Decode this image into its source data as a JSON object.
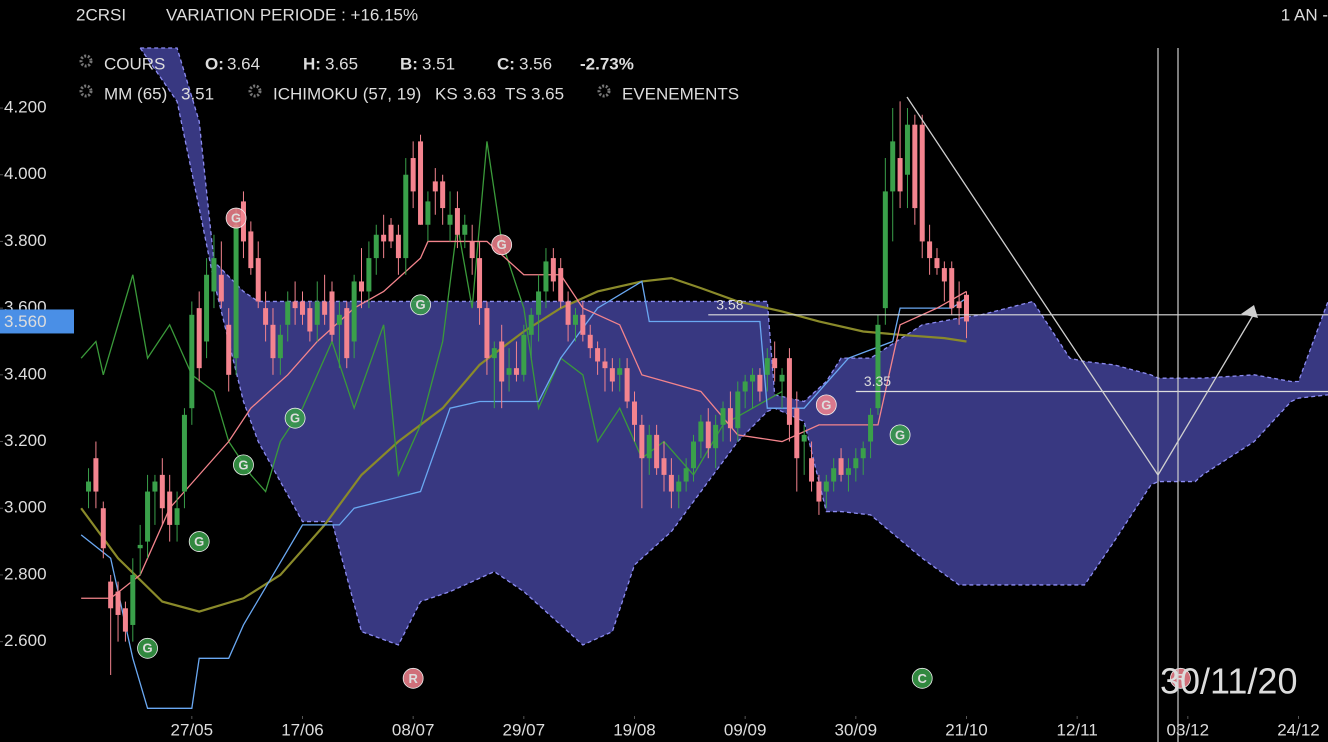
{
  "header": {
    "symbol": "2CRSI",
    "variation": "VARIATION PERIODE : +16.15%",
    "period": "1 AN -"
  },
  "chart_data": {
    "type": "candlestick",
    "quote": {
      "label": "COURS",
      "fields": [
        {
          "label": "O:",
          "value": 3.64
        },
        {
          "label": "H:",
          "value": 3.65
        },
        {
          "label": "B:",
          "value": 3.51
        },
        {
          "label": "C:",
          "value": 3.56
        }
      ],
      "change": "-2.73%"
    },
    "indicator": "ICHIMOKU (57, 19)",
    "events_label": "EVENEMENTS",
    "up_color": "#3aa04a",
    "down_color": "#f4848f",
    "x": [
      1,
      2,
      3,
      4,
      5,
      6,
      7,
      8,
      9,
      10,
      11,
      12,
      13,
      14,
      15,
      16,
      17,
      18,
      19,
      20,
      21,
      22,
      23,
      24,
      25,
      26,
      27,
      28,
      29,
      30,
      31,
      32,
      33,
      34,
      35,
      36,
      37,
      38,
      39,
      40,
      41,
      42,
      43,
      44,
      45,
      46,
      47,
      48,
      49,
      50,
      51,
      52,
      53,
      54,
      55,
      56,
      57,
      58,
      59,
      60,
      61,
      62,
      63,
      64,
      65,
      66,
      67,
      68,
      69,
      70,
      71,
      72,
      73,
      74,
      75,
      76,
      77,
      78,
      79,
      80,
      81,
      82,
      83,
      84,
      85,
      86,
      87,
      88,
      89,
      90,
      91,
      92,
      93,
      94,
      95,
      96,
      97,
      98,
      99,
      100,
      101,
      102,
      103,
      104,
      105,
      106,
      107,
      108,
      109,
      110,
      111,
      112,
      113,
      114,
      115,
      116,
      117,
      118,
      119,
      120
    ],
    "open": [
      3.05,
      3.15,
      3.0,
      2.78,
      2.75,
      2.7,
      2.65,
      2.88,
      2.9,
      3.05,
      3.1,
      3.05,
      2.95,
      3.05,
      3.3,
      3.6,
      3.5,
      3.65,
      3.7,
      3.55,
      3.45,
      3.92,
      3.83,
      3.75,
      3.6,
      3.55,
      3.45,
      3.55,
      3.62,
      3.62,
      3.6,
      3.55,
      3.62,
      3.65,
      3.55,
      3.6,
      3.5,
      3.68,
      3.65,
      3.75,
      3.82,
      3.85,
      3.82,
      3.75,
      4.05,
      4.1,
      3.85,
      3.98,
      3.98,
      3.85,
      3.9,
      3.82,
      3.8,
      3.75,
      3.6,
      3.45,
      3.5,
      3.4,
      3.42,
      3.4,
      3.52,
      3.58,
      3.65,
      3.75,
      3.72,
      3.62,
      3.55,
      3.58,
      3.52,
      3.48,
      3.44,
      3.42,
      3.4,
      3.42,
      3.32,
      3.25,
      3.15,
      3.22,
      3.15,
      3.1,
      3.05,
      3.08,
      3.12,
      3.2,
      3.26,
      3.18,
      3.25,
      3.3,
      3.24,
      3.35,
      3.38,
      3.4,
      3.4,
      3.45,
      3.38,
      3.45,
      3.3,
      3.2,
      3.15,
      3.08,
      3.05,
      3.08,
      3.15,
      3.1,
      3.12,
      3.15,
      3.2,
      3.3,
      3.6,
      3.95,
      4.05,
      4.0,
      4.15,
      4.15,
      3.8,
      3.75,
      3.72,
      3.72,
      3.62,
      3.64
    ],
    "high": [
      3.12,
      3.2,
      3.02,
      2.8,
      2.78,
      2.72,
      2.85,
      2.95,
      3.1,
      3.1,
      3.15,
      3.1,
      3.05,
      3.3,
      3.62,
      3.65,
      3.75,
      3.82,
      3.8,
      3.6,
      3.9,
      3.95,
      3.86,
      3.8,
      3.65,
      3.6,
      3.55,
      3.65,
      3.68,
      3.65,
      3.62,
      3.68,
      3.7,
      3.68,
      3.62,
      3.62,
      3.7,
      3.78,
      3.8,
      3.85,
      3.88,
      3.87,
      3.85,
      4.05,
      4.1,
      4.12,
      3.95,
      4.02,
      4.0,
      3.95,
      3.95,
      3.88,
      3.85,
      3.8,
      3.62,
      3.5,
      3.55,
      3.48,
      3.5,
      3.55,
      3.6,
      3.7,
      3.78,
      3.78,
      3.75,
      3.65,
      3.6,
      3.62,
      3.55,
      3.5,
      3.48,
      3.45,
      3.45,
      3.45,
      3.35,
      3.28,
      3.25,
      3.25,
      3.2,
      3.15,
      3.1,
      3.15,
      3.22,
      3.28,
      3.3,
      3.28,
      3.32,
      3.35,
      3.38,
      3.4,
      3.42,
      3.42,
      3.48,
      3.5,
      3.42,
      3.48,
      3.35,
      3.25,
      3.2,
      3.1,
      3.1,
      3.15,
      3.18,
      3.15,
      3.18,
      3.2,
      3.3,
      3.58,
      4.05,
      4.2,
      4.22,
      4.2,
      4.18,
      4.18,
      3.85,
      3.78,
      3.74,
      3.74,
      3.68,
      3.65
    ],
    "low": [
      3.0,
      3.0,
      2.85,
      2.5,
      2.6,
      2.6,
      2.6,
      2.8,
      2.85,
      2.95,
      2.95,
      2.9,
      2.9,
      3.0,
      3.25,
      3.38,
      3.45,
      3.6,
      3.6,
      3.35,
      3.4,
      3.75,
      3.7,
      3.6,
      3.5,
      3.4,
      3.4,
      3.5,
      3.55,
      3.55,
      3.5,
      3.5,
      3.55,
      3.5,
      3.42,
      3.42,
      3.45,
      3.6,
      3.6,
      3.7,
      3.75,
      3.78,
      3.7,
      3.7,
      3.9,
      3.85,
      3.8,
      3.88,
      3.85,
      3.8,
      3.78,
      3.78,
      3.7,
      3.55,
      3.4,
      3.3,
      3.3,
      3.35,
      3.38,
      3.38,
      3.45,
      3.5,
      3.6,
      3.65,
      3.6,
      3.5,
      3.5,
      3.5,
      3.45,
      3.4,
      3.35,
      3.35,
      3.35,
      3.3,
      3.2,
      3.0,
      3.1,
      3.1,
      3.05,
      3.0,
      3.0,
      3.05,
      3.08,
      3.15,
      3.15,
      3.12,
      3.2,
      3.2,
      3.2,
      3.3,
      3.3,
      3.32,
      3.35,
      3.38,
      3.3,
      3.2,
      3.05,
      3.1,
      3.05,
      2.98,
      3.0,
      3.05,
      3.08,
      3.05,
      3.08,
      3.1,
      3.15,
      3.28,
      3.55,
      3.8,
      3.9,
      3.9,
      3.85,
      3.75,
      3.7,
      3.7,
      3.62,
      3.58,
      3.55,
      3.51
    ],
    "close": [
      3.08,
      3.05,
      2.88,
      2.7,
      2.68,
      2.63,
      2.8,
      2.89,
      3.05,
      3.08,
      3.0,
      2.95,
      3.0,
      3.28,
      3.58,
      3.42,
      3.7,
      3.75,
      3.62,
      3.4,
      3.85,
      3.8,
      3.72,
      3.62,
      3.55,
      3.45,
      3.52,
      3.62,
      3.6,
      3.58,
      3.53,
      3.62,
      3.58,
      3.52,
      3.58,
      3.45,
      3.68,
      3.65,
      3.75,
      3.82,
      3.8,
      3.8,
      3.75,
      4.0,
      3.95,
      3.85,
      3.92,
      3.95,
      3.9,
      3.88,
      3.82,
      3.85,
      3.75,
      3.6,
      3.45,
      3.48,
      3.38,
      3.42,
      3.4,
      3.52,
      3.58,
      3.65,
      3.74,
      3.68,
      3.62,
      3.55,
      3.58,
      3.52,
      3.48,
      3.44,
      3.42,
      3.38,
      3.42,
      3.32,
      3.25,
      3.15,
      3.22,
      3.12,
      3.1,
      3.05,
      3.08,
      3.12,
      3.2,
      3.26,
      3.18,
      3.25,
      3.3,
      3.24,
      3.35,
      3.38,
      3.4,
      3.35,
      3.45,
      3.42,
      3.4,
      3.25,
      3.15,
      3.22,
      3.08,
      3.02,
      3.08,
      3.12,
      3.1,
      3.12,
      3.15,
      3.18,
      3.28,
      3.55,
      3.95,
      4.1,
      3.95,
      4.15,
      3.9,
      3.8,
      3.75,
      3.72,
      3.68,
      3.6,
      3.6,
      3.56
    ],
    "series": [
      {
        "name": "MM (65)",
        "current": 3.51,
        "color": "#8a8a2a",
        "x": [
          0,
          5,
          11,
          16,
          22,
          27,
          33,
          38,
          43,
          49,
          54,
          60,
          65,
          70,
          76,
          80,
          84,
          89,
          95,
          100,
          106,
          111,
          117,
          120
        ],
        "values": [
          3.0,
          2.85,
          2.72,
          2.69,
          2.73,
          2.8,
          2.95,
          3.1,
          3.2,
          3.3,
          3.43,
          3.53,
          3.6,
          3.65,
          3.68,
          3.69,
          3.66,
          3.62,
          3.59,
          3.56,
          3.53,
          3.52,
          3.51,
          3.5
        ]
      },
      {
        "color": "#3a9a3a",
        "x": [
          0,
          2,
          3,
          7,
          9,
          12,
          15,
          18,
          20,
          23,
          25,
          27,
          30,
          34,
          37,
          41,
          43,
          46,
          49,
          51,
          53,
          55,
          57,
          60,
          62,
          65,
          68,
          70,
          73,
          76,
          79,
          83,
          87,
          91,
          95
        ],
        "values": [
          3.45,
          3.5,
          3.4,
          3.7,
          3.45,
          3.55,
          3.4,
          3.35,
          3.2,
          3.1,
          3.05,
          3.2,
          3.3,
          3.5,
          3.3,
          3.55,
          3.1,
          3.25,
          3.5,
          3.85,
          3.6,
          4.1,
          3.8,
          3.6,
          3.3,
          3.45,
          3.4,
          3.2,
          3.3,
          3.15,
          3.2,
          3.1,
          3.25,
          3.3,
          3.35
        ]
      },
      {
        "name": "KS",
        "current": 3.63,
        "color": "#6aa8f2",
        "x": [
          0,
          4,
          7,
          9,
          15,
          16,
          20,
          22,
          26,
          30,
          35,
          37,
          46,
          50,
          54,
          62,
          65,
          70,
          76,
          77,
          92,
          93,
          98,
          104,
          110,
          111,
          118,
          120
        ],
        "values": [
          2.92,
          2.85,
          2.55,
          2.4,
          2.4,
          2.55,
          2.55,
          2.65,
          2.8,
          2.95,
          2.95,
          3.0,
          3.05,
          3.3,
          3.32,
          3.32,
          3.45,
          3.6,
          3.68,
          3.56,
          3.56,
          3.3,
          3.3,
          3.45,
          3.5,
          3.6,
          3.6,
          3.63
        ]
      },
      {
        "name": "TS",
        "current": 3.65,
        "color": "#f3848c",
        "x": [
          0,
          4,
          8,
          12,
          16,
          20,
          23,
          28,
          32,
          37,
          41,
          46,
          47,
          55,
          60,
          65,
          68,
          73,
          76,
          84,
          89,
          95,
          100,
          108,
          111,
          116,
          120
        ],
        "values": [
          2.73,
          2.73,
          2.8,
          3.0,
          3.1,
          3.2,
          3.3,
          3.4,
          3.5,
          3.6,
          3.65,
          3.75,
          3.8,
          3.8,
          3.7,
          3.7,
          3.6,
          3.55,
          3.4,
          3.35,
          3.22,
          3.2,
          3.25,
          3.25,
          3.55,
          3.6,
          3.65
        ]
      }
    ],
    "cloud": {
      "fill": "#3b3b88",
      "edge": "#8c8cf2",
      "x": [
        8,
        13,
        16,
        18,
        22,
        24,
        30,
        34,
        38,
        43,
        46,
        50,
        56,
        60,
        68,
        72,
        75,
        80,
        84,
        89,
        93,
        94,
        98,
        101,
        103,
        107,
        114,
        119,
        122,
        129,
        134,
        136,
        140,
        145,
        146,
        151,
        152,
        159,
        164,
        165,
        169
      ],
      "upper": [
        4.38,
        4.38,
        4.16,
        3.74,
        3.65,
        3.62,
        3.62,
        3.62,
        3.62,
        3.62,
        3.62,
        3.62,
        3.62,
        3.62,
        3.62,
        3.62,
        3.62,
        3.62,
        3.62,
        3.62,
        3.62,
        3.34,
        3.32,
        3.38,
        3.45,
        3.45,
        3.55,
        3.57,
        3.58,
        3.62,
        3.45,
        3.44,
        3.43,
        3.4,
        3.39,
        3.39,
        3.39,
        3.4,
        3.38,
        3.38,
        3.62
      ],
      "lower": [
        4.38,
        4.22,
        3.9,
        3.68,
        3.32,
        3.2,
        2.96,
        2.96,
        2.63,
        2.59,
        2.72,
        2.75,
        2.81,
        2.75,
        2.59,
        2.63,
        2.83,
        2.93,
        3.05,
        3.2,
        3.29,
        3.3,
        3.26,
        2.99,
        2.99,
        2.98,
        2.85,
        2.77,
        2.77,
        2.77,
        2.77,
        2.77,
        2.9,
        3.07,
        3.08,
        3.08,
        3.1,
        3.2,
        3.32,
        3.33,
        3.34
      ]
    },
    "levels": [
      {
        "value": 3.58,
        "x": 85
      },
      {
        "value": 3.35,
        "x": 105
      }
    ],
    "price_tag": {
      "value": 3.56,
      "label": "3.560"
    },
    "events": [
      {
        "label": "G",
        "x": 21,
        "y": 3.87,
        "color": "#f4848f"
      },
      {
        "label": "G",
        "x": 29,
        "y": 3.27,
        "color": "#3aa04a"
      },
      {
        "label": "G",
        "x": 22,
        "y": 3.13,
        "color": "#3aa04a"
      },
      {
        "label": "G",
        "x": 16,
        "y": 2.9,
        "color": "#3aa04a"
      },
      {
        "label": "G",
        "x": 9,
        "y": 2.58,
        "color": "#3aa04a"
      },
      {
        "label": "G",
        "x": 46,
        "y": 3.61,
        "color": "#3aa04a"
      },
      {
        "label": "G",
        "x": 57,
        "y": 3.79,
        "color": "#f4848f"
      },
      {
        "label": "G",
        "x": 101,
        "y": 3.31,
        "color": "#f4848f"
      },
      {
        "label": "G",
        "x": 111,
        "y": 3.22,
        "color": "#3aa04a"
      },
      {
        "label": "R",
        "x": 45,
        "y": 2.49,
        "color": "#f4848f"
      },
      {
        "label": "C",
        "x": 114,
        "y": 2.49,
        "color": "#3aa04a"
      },
      {
        "label": "R",
        "x": 149,
        "y": 2.49,
        "color": "#f4848f"
      }
    ],
    "cursor_label": "30/11/20",
    "xlim": [
      -11,
      169
    ],
    "xticks": [
      {
        "value": 15,
        "label": "27/05"
      },
      {
        "value": 30,
        "label": "17/06"
      },
      {
        "value": 45,
        "label": "08/07"
      },
      {
        "value": 60,
        "label": "29/07"
      },
      {
        "value": 75,
        "label": "19/08"
      },
      {
        "value": 90,
        "label": "09/09"
      },
      {
        "value": 105,
        "label": "30/09"
      },
      {
        "value": 120,
        "label": "21/10"
      },
      {
        "value": 135,
        "label": "12/11"
      },
      {
        "value": 150,
        "label": "03/12"
      },
      {
        "value": 165,
        "label": "24/12"
      }
    ],
    "ylim": [
      2.38,
      4.38
    ],
    "yticks": [
      {
        "value": 2.6,
        "label": "2.600"
      },
      {
        "value": 2.8,
        "label": "2.800"
      },
      {
        "value": 3.0,
        "label": "3.000"
      },
      {
        "value": 3.2,
        "label": "3.200"
      },
      {
        "value": 3.4,
        "label": "3.400"
      },
      {
        "value": 3.6,
        "label": "3.600"
      },
      {
        "value": 3.8,
        "label": "3.800"
      },
      {
        "value": 4.0,
        "label": "4.000"
      },
      {
        "value": 4.2,
        "label": "4.200"
      }
    ]
  }
}
